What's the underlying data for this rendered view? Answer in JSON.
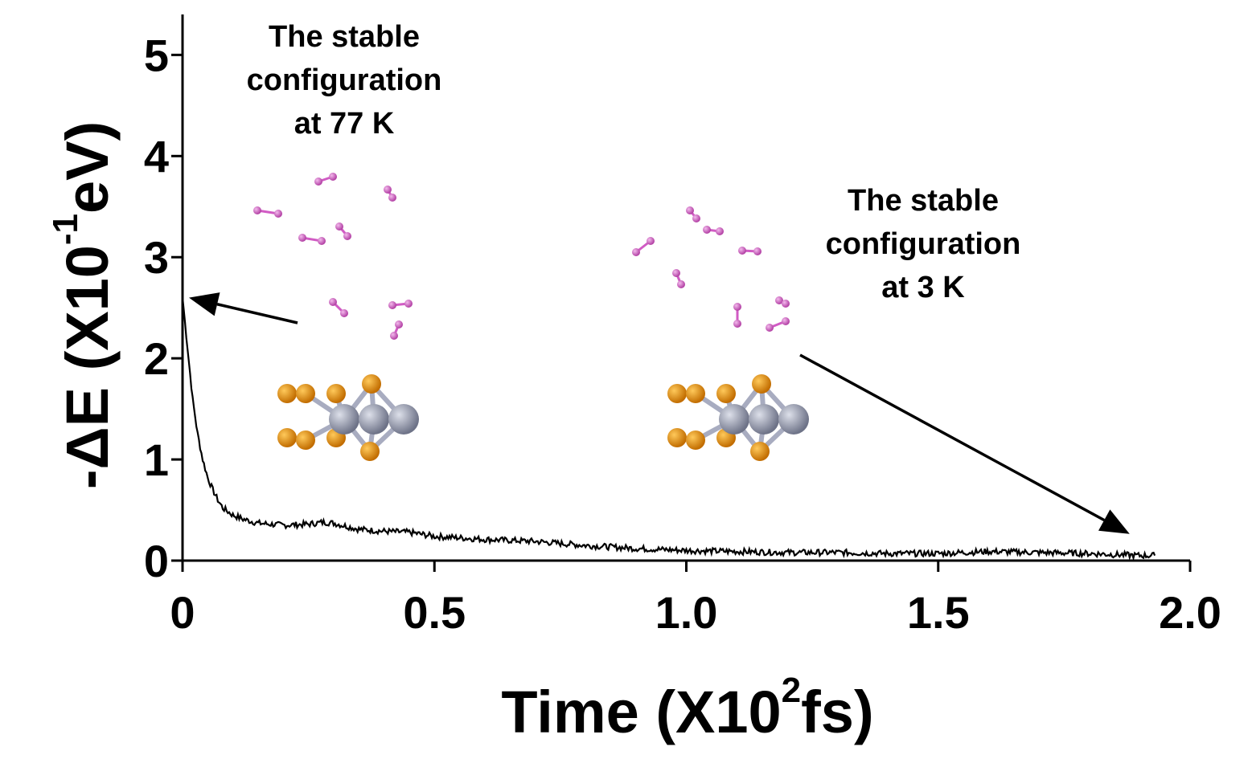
{
  "chart_data": {
    "type": "line",
    "xlabel": {
      "prefix": "Time (X10",
      "sup": "2",
      "suffix": "fs)"
    },
    "ylabel": {
      "prefix": "-ΔE (X10",
      "sup": "-1",
      "suffix": "eV)"
    },
    "xlim": [
      0,
      2.0
    ],
    "ylim": [
      0,
      5.4
    ],
    "xticks": [
      {
        "v": 0,
        "label": "0"
      },
      {
        "v": 0.5,
        "label": "0.5"
      },
      {
        "v": 1.0,
        "label": "1.0"
      },
      {
        "v": 1.5,
        "label": "1.5"
      },
      {
        "v": 2.0,
        "label": "2.0"
      }
    ],
    "yticks": [
      {
        "v": 0,
        "label": "0"
      },
      {
        "v": 1,
        "label": "1"
      },
      {
        "v": 2,
        "label": "2"
      },
      {
        "v": 3,
        "label": "3"
      },
      {
        "v": 4,
        "label": "4"
      },
      {
        "v": 5,
        "label": "5"
      }
    ],
    "grid": false,
    "series": [
      {
        "color": "#000000",
        "x": [
          0,
          0.01,
          0.02,
          0.03,
          0.04,
          0.05,
          0.06,
          0.07,
          0.08,
          0.1,
          0.12,
          0.15,
          0.2,
          0.25,
          0.28,
          0.3,
          0.35,
          0.4,
          0.45,
          0.5,
          0.6,
          0.7,
          0.8,
          0.9,
          1.0,
          1.1,
          1.2,
          1.3,
          1.4,
          1.5,
          1.6,
          1.7,
          1.8,
          1.9,
          1.93
        ],
        "y": [
          2.6,
          2.1,
          1.6,
          1.25,
          1.0,
          0.82,
          0.7,
          0.6,
          0.52,
          0.45,
          0.41,
          0.37,
          0.35,
          0.36,
          0.38,
          0.37,
          0.31,
          0.29,
          0.28,
          0.24,
          0.21,
          0.19,
          0.15,
          0.12,
          0.1,
          0.09,
          0.08,
          0.08,
          0.07,
          0.07,
          0.09,
          0.08,
          0.07,
          0.05,
          0.05
        ]
      }
    ],
    "annotations": [
      {
        "lines": [
          "The stable",
          "configuration",
          "at 77 K"
        ],
        "points_to": {
          "x": 0.0,
          "y": 2.6
        }
      },
      {
        "lines": [
          "The stable",
          "configuration",
          "at 3 K"
        ],
        "points_to": {
          "x": 1.88,
          "y": 0.2
        }
      }
    ]
  },
  "colors": {
    "hydrogen": "#d15bc4",
    "gold": "#e8900a",
    "metal": "#9aa0b4"
  }
}
